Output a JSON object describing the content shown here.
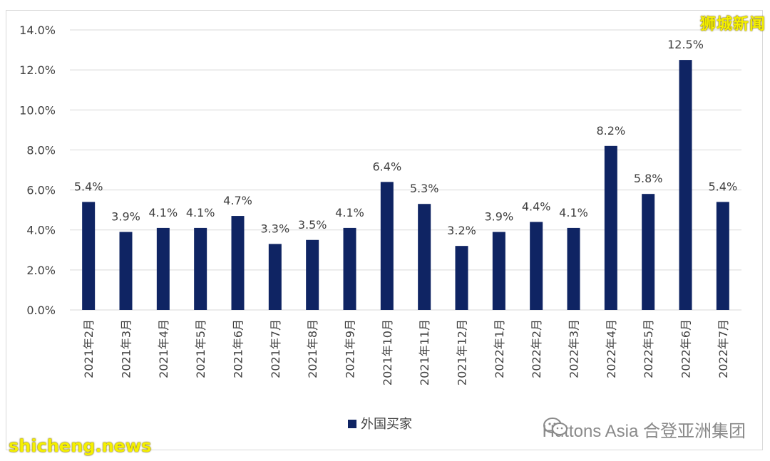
{
  "chart_data": {
    "type": "bar",
    "categories": [
      "2021年2月",
      "2021年3月",
      "2021年4月",
      "2021年5月",
      "2021年6月",
      "2021年7月",
      "2021年8月",
      "2021年9月",
      "2021年10月",
      "2021年11月",
      "2021年12月",
      "2022年1月",
      "2022年2月",
      "2022年3月",
      "2022年4月",
      "2022年5月",
      "2022年6月",
      "2022年7月"
    ],
    "series": [
      {
        "name": "外国买家",
        "values": [
          5.4,
          3.9,
          4.1,
          4.1,
          4.7,
          3.3,
          3.5,
          4.1,
          6.4,
          5.3,
          3.2,
          3.9,
          4.4,
          4.1,
          8.2,
          5.8,
          12.5,
          5.4
        ],
        "labels": [
          "5.4%",
          "3.9%",
          "4.1%",
          "4.1%",
          "4.7%",
          "3.3%",
          "3.5%",
          "4.1%",
          "6.4%",
          "5.3%",
          "3.2%",
          "3.9%",
          "4.4%",
          "4.1%",
          "8.2%",
          "5.8%",
          "12.5%",
          "5.4%"
        ]
      }
    ],
    "ylim": [
      0,
      14
    ],
    "yticks": [
      "0.0%",
      "2.0%",
      "4.0%",
      "6.0%",
      "8.0%",
      "10.0%",
      "12.0%",
      "14.0%"
    ],
    "grid": true,
    "legend_position": "bottom-center",
    "bar_color": "#0f2463",
    "gridline_color": "#d9d9d9"
  },
  "watermarks": {
    "top_right": "狮城新闻",
    "bottom_left": "shicheng.news",
    "bottom_right": "Huttons Asia 合登亚洲集团",
    "watermark_color": "#f5f000"
  }
}
